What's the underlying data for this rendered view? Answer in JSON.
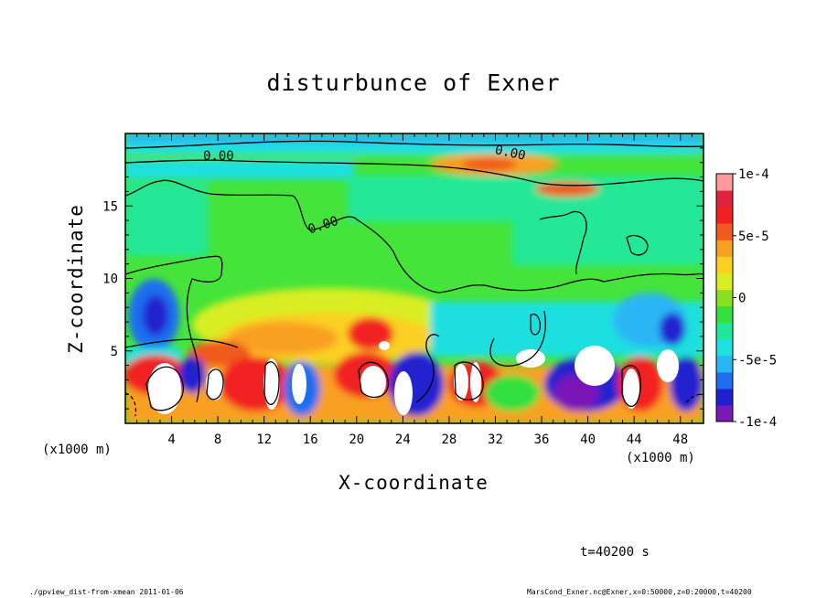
{
  "chart_data": {
    "type": "heatmap",
    "title": "disturbunce of Exner",
    "xlabel": "X-coordinate",
    "ylabel": "Z-coordinate",
    "x_unit_label": "(x1000 m)",
    "xlim": [
      0,
      50
    ],
    "ylim": [
      0,
      20
    ],
    "x_ticks": [
      4,
      8,
      12,
      16,
      20,
      24,
      28,
      32,
      36,
      40,
      44,
      48
    ],
    "y_ticks": [
      5,
      10,
      15
    ],
    "colorbar": {
      "range": [
        -0.0001,
        0.0001
      ],
      "tick_labels": [
        "1e-4",
        "5e-5",
        "0",
        "-5e-5",
        "-1e-4"
      ],
      "tick_values": [
        0.0001,
        5e-05,
        0,
        -5e-05,
        -0.0001
      ],
      "colors": [
        "#7a18b8",
        "#2020d0",
        "#1f6ef0",
        "#29b6f5",
        "#1ee0e0",
        "#20e898",
        "#33e040",
        "#88e020",
        "#d8ee20",
        "#fbd020",
        "#f9a020",
        "#f05a1e",
        "#f22020",
        "#e0233c",
        "#ff9a9a"
      ]
    },
    "contour_labels": [
      "0.00",
      "0.00",
      "0.00"
    ]
  },
  "annotations": {
    "time": "t=40200 s",
    "footer_left": "./gpview_dist-from-xmean  2011-01-06",
    "footer_right": "MarsCond_Exner.nc@Exner,x=0:50000,z=0:20000,t=40200"
  }
}
